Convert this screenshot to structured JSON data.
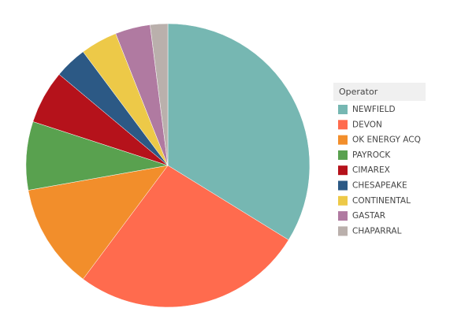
{
  "chart_data": {
    "type": "pie",
    "legend_title": "Operator",
    "categories": [
      "NEWFIELD",
      "DEVON",
      "OK ENERGY ACQ",
      "PAYROCK",
      "CIMAREX",
      "CHESAPEAKE",
      "CONTINENTAL",
      "GASTAR",
      "CHAPARRAL"
    ],
    "values": [
      33.8,
      26.4,
      12,
      7.8,
      6.1,
      3.7,
      4.2,
      4,
      2
    ],
    "colors": [
      "#76b7b2",
      "#ff6b4e",
      "#f28e2b",
      "#59a14f",
      "#b5121b",
      "#2c5985",
      "#edc948",
      "#b07aa1",
      "#bab0ac"
    ],
    "legend": "right"
  }
}
